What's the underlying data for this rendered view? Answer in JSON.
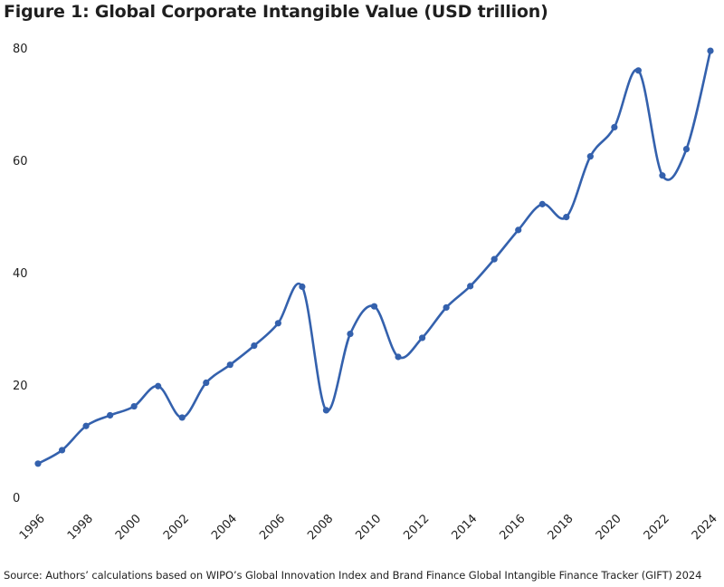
{
  "title": "Figure 1: Global Corporate Intangible Value (USD trillion)",
  "source": "Source: Authors’ calculations based on WIPO’s Global Innovation Index and Brand Finance Global Intangible Finance Tracker (GIFT) 2024",
  "colors": {
    "line": "#3461ad",
    "text": "#222222"
  },
  "chart_data": {
    "type": "line",
    "title": "Figure 1: Global Corporate Intangible Value (USD trillion)",
    "xlabel": "",
    "ylabel": "",
    "x": [
      1996,
      1997,
      1998,
      1999,
      2000,
      2001,
      2002,
      2003,
      2004,
      2005,
      2006,
      2007,
      2008,
      2009,
      2010,
      2011,
      2012,
      2013,
      2014,
      2015,
      2016,
      2017,
      2018,
      2019,
      2020,
      2021,
      2022,
      2023,
      2024
    ],
    "series": [
      {
        "values": [
          6.0,
          8.4,
          12.7,
          14.6,
          16.2,
          19.8,
          14.2,
          20.4,
          23.6,
          27.0,
          31.0,
          37.5,
          15.5,
          29.1,
          34.0,
          25.0,
          28.4,
          33.8,
          37.6,
          42.4,
          47.6,
          52.2,
          49.9,
          60.7,
          65.9,
          76.0,
          57.3,
          62.0,
          79.5
        ]
      }
    ],
    "xticks": [
      "1996",
      "1998",
      "2000",
      "2002",
      "2004",
      "2006",
      "2008",
      "2010",
      "2012",
      "2014",
      "2016",
      "2018",
      "2020",
      "2022",
      "2024"
    ],
    "yticks": [
      "0",
      "20",
      "40",
      "60",
      "80"
    ],
    "xlim": [
      1996,
      2024
    ],
    "ylim": [
      0,
      80
    ],
    "grid": false,
    "legend": "none",
    "markers": true,
    "smooth": true
  }
}
